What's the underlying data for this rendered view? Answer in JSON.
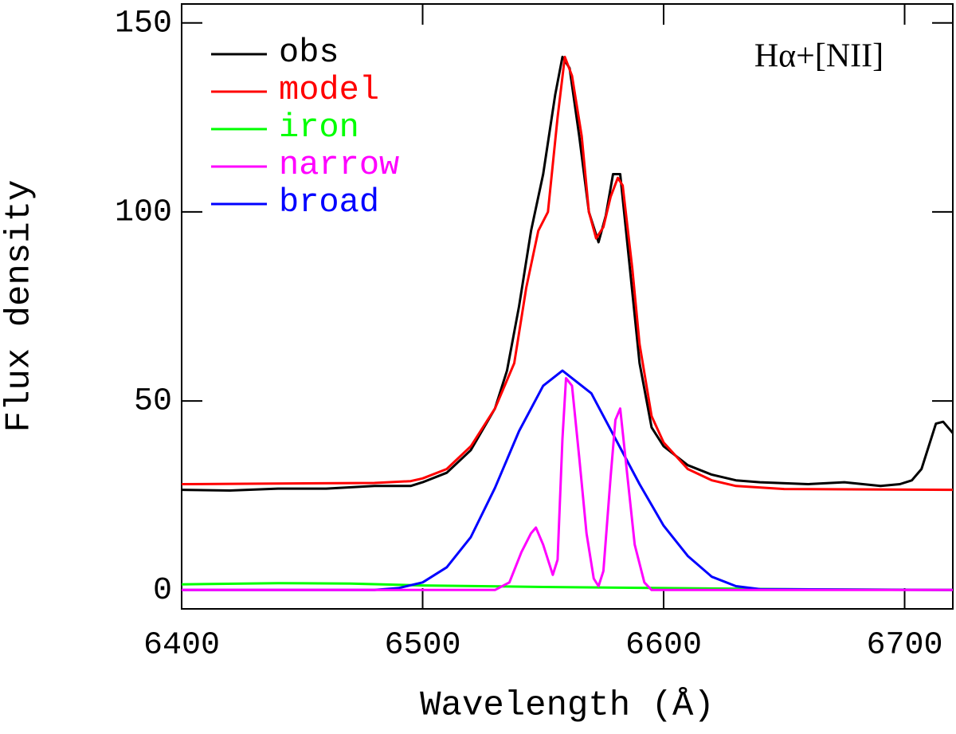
{
  "chart_data": {
    "type": "line",
    "annotation": "Hα+[NII]",
    "x_label": "Wavelength (Å)",
    "y_label": "Flux density",
    "xlim": [
      6400,
      6720
    ],
    "ylim": [
      -5,
      155
    ],
    "xticks": [
      6400,
      6500,
      6600,
      6700
    ],
    "yticks": [
      0,
      50,
      100,
      150
    ],
    "legend": "upper left",
    "series": [
      {
        "name": "obs",
        "color": "#000000",
        "x": [
          6400,
          6420,
          6440,
          6460,
          6480,
          6495,
          6500,
          6510,
          6520,
          6530,
          6535,
          6540,
          6545,
          6550,
          6555,
          6558,
          6561,
          6565,
          6569,
          6573,
          6576,
          6579,
          6582,
          6586,
          6590,
          6595,
          6600,
          6610,
          6620,
          6630,
          6640,
          6660,
          6675,
          6690,
          6698,
          6703,
          6707,
          6713,
          6716,
          6720
        ],
        "values": [
          26.5,
          26.3,
          26.8,
          26.8,
          27.5,
          27.5,
          28.5,
          31,
          37,
          48,
          58,
          75,
          95,
          110,
          131,
          141,
          138,
          120,
          100,
          92,
          99,
          110,
          110,
          85,
          60,
          43,
          38,
          33,
          30.5,
          29,
          28.5,
          28,
          28.5,
          27.5,
          28,
          29,
          32,
          44,
          44.5,
          41.5
        ]
      },
      {
        "name": "model",
        "color": "#ff0000",
        "x": [
          6400,
          6480,
          6495,
          6500,
          6510,
          6520,
          6530,
          6538,
          6543,
          6548,
          6552,
          6556,
          6559,
          6562,
          6566,
          6569,
          6572,
          6575,
          6578,
          6581,
          6583,
          6587,
          6590,
          6595,
          6600,
          6610,
          6620,
          6630,
          6650,
          6720
        ],
        "values": [
          28,
          28.3,
          28.8,
          29.5,
          32,
          38,
          48,
          60,
          80,
          95,
          100,
          125,
          141,
          136,
          120,
          100,
          93,
          96,
          104,
          109,
          107,
          85,
          65,
          46,
          39,
          32,
          29,
          27.5,
          26.7,
          26.5
        ]
      },
      {
        "name": "iron",
        "color": "#00ff00",
        "x": [
          6400,
          6440,
          6470,
          6500,
          6550,
          6600,
          6650,
          6720
        ],
        "values": [
          1.5,
          1.8,
          1.7,
          1.2,
          0.8,
          0.5,
          0.2,
          0
        ]
      },
      {
        "name": "narrow",
        "color": "#ff00ff",
        "x": [
          6400,
          6530,
          6536,
          6541,
          6545,
          6547,
          6550,
          6554,
          6556,
          6558,
          6559.5,
          6562,
          6565,
          6568,
          6571,
          6573,
          6575,
          6578,
          6580,
          6582,
          6585,
          6588,
          6592,
          6595,
          6720
        ],
        "values": [
          0,
          0,
          2,
          10,
          15,
          16.5,
          12,
          4,
          8,
          40,
          56,
          54,
          35,
          15,
          3,
          1,
          5,
          30,
          45,
          48,
          30,
          12,
          2,
          0,
          0
        ]
      },
      {
        "name": "broad",
        "color": "#0000ff",
        "x": [
          6400,
          6480,
          6490,
          6500,
          6510,
          6520,
          6530,
          6540,
          6550,
          6558,
          6570,
          6580,
          6590,
          6600,
          6610,
          6620,
          6630,
          6640,
          6720
        ],
        "values": [
          0,
          0,
          0.5,
          2,
          6,
          14,
          27,
          42,
          54,
          58,
          52,
          40,
          28,
          17,
          9,
          3.5,
          1,
          0.2,
          0
        ]
      }
    ]
  }
}
